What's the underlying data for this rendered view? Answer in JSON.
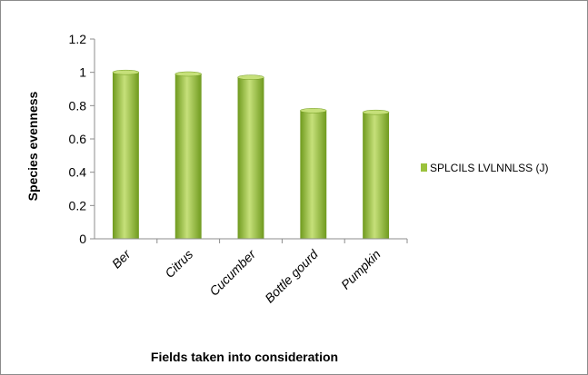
{
  "chart_data": {
    "type": "bar",
    "categories": [
      "Ber",
      "Citrus",
      "Cucumber",
      "Bottle gourd",
      "Pumpkin"
    ],
    "series": [
      {
        "name": "SPLCILS LVLNNLSS (J)",
        "values": [
          1.0,
          0.99,
          0.97,
          0.77,
          0.76
        ]
      }
    ],
    "xlabel": "Fields taken into consideration",
    "ylabel": "Species evenness",
    "ylim": [
      0,
      1.2
    ],
    "yticks": [
      "0",
      "0.2",
      "0.4",
      "0.6",
      "0.8",
      "1",
      "1.2"
    ],
    "grid": false,
    "legend_position": "right",
    "colors": {
      "bar_light": "#c6e07a",
      "bar_mid": "#9bc23c",
      "bar_dark": "#6f9a1e",
      "axis": "#8c8c8c"
    }
  }
}
